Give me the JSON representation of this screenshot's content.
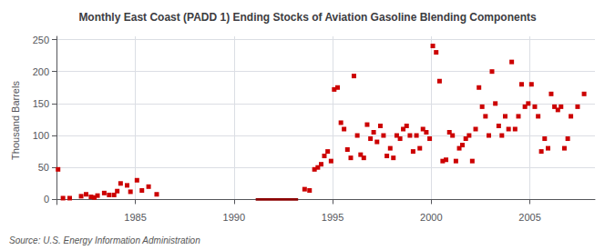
{
  "chart_data": {
    "type": "scatter",
    "title": "Monthly East Coast (PADD 1) Ending Stocks of Aviation Gasoline Blending Components",
    "ylabel": "Thousand Barrels",
    "annotations": [
      "Source: U.S. Energy Information Administration"
    ],
    "color": "#cc0000",
    "marker": "square",
    "xlim": [
      1981.0,
      2008.3
    ],
    "ylim": [
      -8,
      255
    ],
    "xticks": [
      1985,
      1990,
      1995,
      2000,
      2005
    ],
    "yticks": [
      0,
      50,
      100,
      150,
      200,
      250
    ],
    "grid": true,
    "bands": [
      {
        "x1": 1991.1,
        "x2": 1993.25,
        "y1": -2,
        "y2": 2,
        "color": "#8b0000"
      }
    ],
    "x": [
      1981.08,
      1981.33,
      1981.67,
      1982.25,
      1982.5,
      1982.75,
      1982.92,
      1983.08,
      1983.42,
      1983.67,
      1983.92,
      1984.08,
      1984.25,
      1984.58,
      1984.75,
      1985.08,
      1985.33,
      1985.67,
      1986.08,
      1993.58,
      1993.83,
      1994.08,
      1994.25,
      1994.42,
      1994.58,
      1994.75,
      1994.92,
      1995.08,
      1995.25,
      1995.42,
      1995.58,
      1995.75,
      1995.92,
      1996.08,
      1996.25,
      1996.42,
      1996.58,
      1996.75,
      1996.92,
      1997.08,
      1997.25,
      1997.42,
      1997.58,
      1997.75,
      1997.92,
      1998.08,
      1998.25,
      1998.42,
      1998.58,
      1998.75,
      1998.92,
      1999.08,
      1999.25,
      1999.42,
      1999.58,
      1999.75,
      1999.92,
      2000.08,
      2000.25,
      2000.42,
      2000.58,
      2000.75,
      2000.92,
      2001.08,
      2001.25,
      2001.42,
      2001.58,
      2001.75,
      2001.92,
      2002.08,
      2002.25,
      2002.42,
      2002.58,
      2002.75,
      2002.92,
      2003.08,
      2003.25,
      2003.42,
      2003.58,
      2003.75,
      2003.92,
      2004.08,
      2004.25,
      2004.42,
      2004.58,
      2004.75,
      2004.92,
      2005.08,
      2005.25,
      2005.42,
      2005.58,
      2005.75,
      2005.92,
      2006.08,
      2006.25,
      2006.42,
      2006.58,
      2006.75,
      2006.92,
      2007.08,
      2007.42,
      2007.75
    ],
    "values": [
      47,
      2,
      2,
      5,
      8,
      4,
      3,
      6,
      10,
      7,
      7,
      13,
      25,
      22,
      12,
      30,
      14,
      20,
      8,
      16,
      14,
      47,
      50,
      55,
      68,
      75,
      60,
      172,
      175,
      120,
      110,
      78,
      65,
      193,
      100,
      70,
      65,
      117,
      95,
      105,
      90,
      115,
      100,
      68,
      80,
      65,
      100,
      95,
      110,
      115,
      100,
      75,
      100,
      80,
      110,
      105,
      95,
      240,
      230,
      185,
      60,
      62,
      105,
      100,
      60,
      80,
      85,
      95,
      100,
      60,
      110,
      175,
      145,
      130,
      100,
      200,
      150,
      115,
      100,
      130,
      110,
      215,
      110,
      130,
      180,
      145,
      150,
      180,
      145,
      130,
      75,
      95,
      80,
      165,
      145,
      140,
      145,
      80,
      95,
      130,
      145,
      165
    ]
  }
}
